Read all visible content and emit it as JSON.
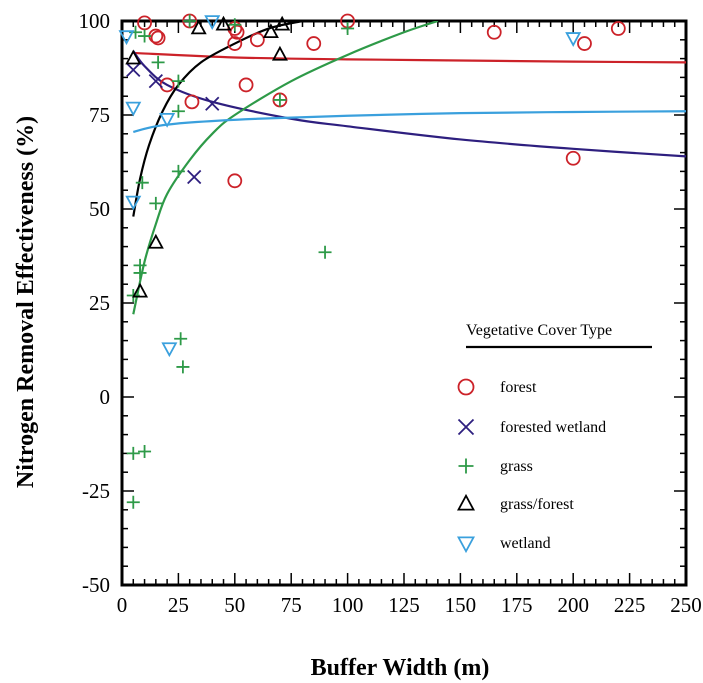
{
  "chart_data": {
    "type": "scatter",
    "xlabel": "Buffer Width (m)",
    "ylabel": "Nitrogen Removal Effectiveness (%)",
    "xlim": [
      0,
      250
    ],
    "ylim": [
      -50,
      100
    ],
    "xticks": [
      "0",
      "25",
      "50",
      "75",
      "100",
      "125",
      "150",
      "175",
      "200",
      "225",
      "250"
    ],
    "yticks": [
      "-50",
      "-25",
      "0",
      "25",
      "50",
      "75",
      "100"
    ],
    "grid": false,
    "legend": {
      "title": "Vegetative Cover Type",
      "placement": "bottom-right"
    },
    "colors": {
      "forest": "#cc2229",
      "forested_wetland": "#2e1f7f",
      "grass": "#2e9a48",
      "grass_forest": "#000000",
      "wetland": "#3aa0dd"
    },
    "series": [
      {
        "name": "forest",
        "marker": "circle",
        "color": "#cc2229",
        "points": [
          [
            10,
            99.5
          ],
          [
            15,
            96
          ],
          [
            16,
            95.5
          ],
          [
            20,
            83
          ],
          [
            30,
            100
          ],
          [
            31,
            78.5
          ],
          [
            50,
            98
          ],
          [
            51,
            97
          ],
          [
            50,
            94
          ],
          [
            50,
            57.5
          ],
          [
            55,
            83
          ],
          [
            60,
            95
          ],
          [
            70,
            79
          ],
          [
            85,
            94
          ],
          [
            100,
            100
          ],
          [
            165,
            97
          ],
          [
            200,
            63.5
          ],
          [
            205,
            94
          ],
          [
            220,
            98
          ]
        ]
      },
      {
        "name": "forested wetland",
        "marker": "x",
        "color": "#2e1f7f",
        "points": [
          [
            5,
            87
          ],
          [
            15,
            84
          ],
          [
            32,
            58.5
          ],
          [
            40,
            78
          ]
        ]
      },
      {
        "name": "grass",
        "marker": "plus",
        "color": "#2e9a48",
        "points": [
          [
            5,
            -28
          ],
          [
            5,
            -15
          ],
          [
            5,
            27
          ],
          [
            6,
            97
          ],
          [
            8,
            33
          ],
          [
            8,
            35
          ],
          [
            9,
            57
          ],
          [
            10,
            -14.5
          ],
          [
            10,
            96
          ],
          [
            15,
            51.5
          ],
          [
            16,
            89
          ],
          [
            25,
            84
          ],
          [
            25,
            60
          ],
          [
            25,
            76
          ],
          [
            26,
            15.5
          ],
          [
            27,
            8
          ],
          [
            30,
            100
          ],
          [
            50,
            99
          ],
          [
            70,
            79
          ],
          [
            90,
            38.5
          ],
          [
            100,
            98
          ]
        ]
      },
      {
        "name": "grass/forest",
        "marker": "triangle-up",
        "color": "#000000",
        "points": [
          [
            5,
            90
          ],
          [
            8,
            28
          ],
          [
            15,
            41
          ],
          [
            34,
            98
          ],
          [
            45,
            99
          ],
          [
            66,
            97
          ],
          [
            70,
            91
          ],
          [
            71,
            99
          ]
        ]
      },
      {
        "name": "wetland",
        "marker": "triangle-down",
        "color": "#3aa0dd",
        "points": [
          [
            2,
            96
          ],
          [
            5,
            77
          ],
          [
            5,
            52
          ],
          [
            20,
            74
          ],
          [
            21,
            13
          ],
          [
            40,
            100
          ],
          [
            200,
            95.5
          ]
        ]
      }
    ],
    "fits": [
      {
        "series": "forest",
        "color": "#cc2229",
        "points": [
          [
            5,
            91.5
          ],
          [
            50,
            90.3
          ],
          [
            100,
            89.8
          ],
          [
            150,
            89.5
          ],
          [
            200,
            89.2
          ],
          [
            250,
            89.0
          ]
        ]
      },
      {
        "series": "forested wetland",
        "color": "#2e1f7f",
        "points": [
          [
            5,
            92
          ],
          [
            10,
            88
          ],
          [
            20,
            83
          ],
          [
            40,
            78.5
          ],
          [
            75,
            74
          ],
          [
            100,
            72
          ],
          [
            150,
            68.5
          ],
          [
            200,
            66
          ],
          [
            250,
            64
          ]
        ]
      },
      {
        "series": "grass",
        "color": "#2e9a48",
        "points": [
          [
            5,
            22
          ],
          [
            10,
            36
          ],
          [
            15,
            46
          ],
          [
            20,
            54
          ],
          [
            30,
            63
          ],
          [
            40,
            70
          ],
          [
            50,
            75
          ],
          [
            75,
            84
          ],
          [
            100,
            91
          ],
          [
            125,
            97
          ],
          [
            140,
            100
          ]
        ]
      },
      {
        "series": "grass/forest",
        "color": "#000000",
        "points": [
          [
            5,
            48
          ],
          [
            8,
            58
          ],
          [
            12,
            67
          ],
          [
            18,
            76
          ],
          [
            25,
            83
          ],
          [
            35,
            89
          ],
          [
            50,
            94
          ],
          [
            65,
            98
          ],
          [
            80,
            100
          ]
        ]
      },
      {
        "series": "wetland",
        "color": "#3aa0dd",
        "points": [
          [
            5,
            70.5
          ],
          [
            15,
            72
          ],
          [
            30,
            73
          ],
          [
            60,
            74
          ],
          [
            100,
            74.8
          ],
          [
            150,
            75.5
          ],
          [
            200,
            75.8
          ],
          [
            250,
            76
          ]
        ]
      }
    ]
  }
}
